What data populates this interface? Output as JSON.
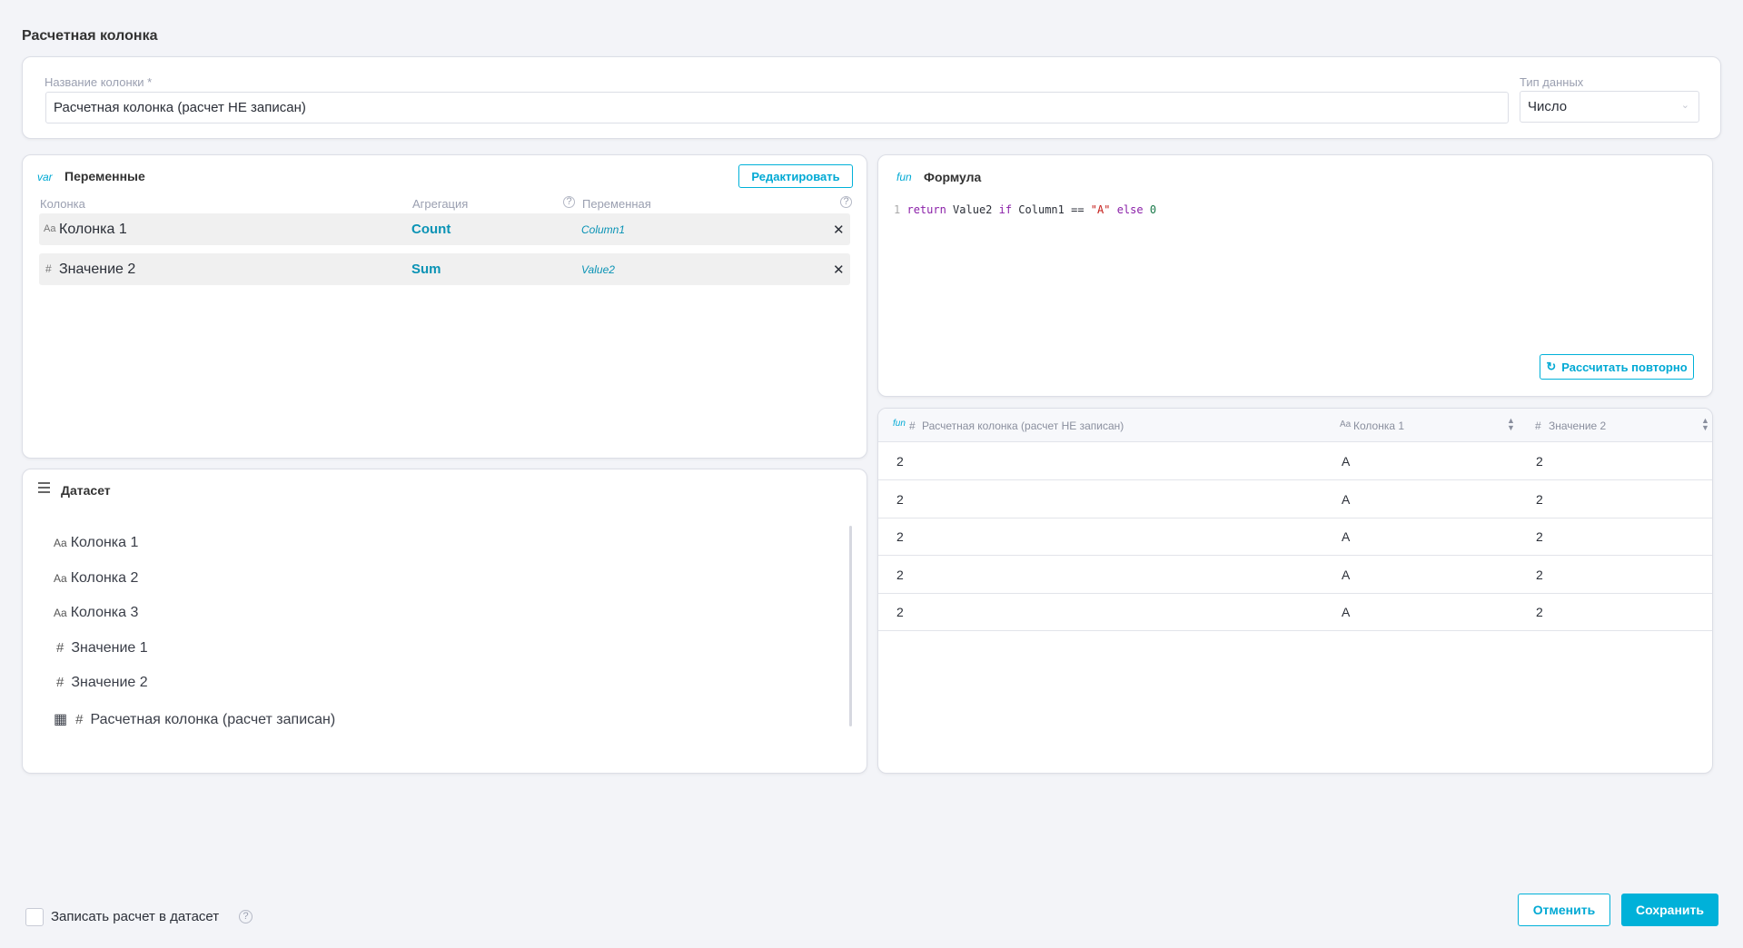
{
  "page_title": "Расчетная колонка",
  "form": {
    "name_label": "Название колонки *",
    "name_value": "Расчетная колонка (расчет НЕ записан)",
    "type_label": "Тип данных",
    "type_value": "Число"
  },
  "variables": {
    "icon_text": "var",
    "title": "Переменные",
    "edit_label": "Редактировать",
    "headers": {
      "column": "Колонка",
      "aggregation": "Агрегация",
      "variable": "Переменная"
    },
    "rows": [
      {
        "type_icon": "Aa",
        "column": "Колонка 1",
        "aggregation": "Count",
        "variable": "Column1"
      },
      {
        "type_icon": "#",
        "column": "Значение 2",
        "aggregation": "Sum",
        "variable": "Value2"
      }
    ]
  },
  "formula": {
    "icon_text": "fun",
    "title": "Формула",
    "line_number": "1",
    "code": {
      "kw1": "return",
      "t1": " Value2 ",
      "kw2": "if",
      "t2": " Column1 == ",
      "str": "\"A\"",
      "t3": " ",
      "kw3": "else",
      "t4": " ",
      "num": "0"
    },
    "recalc_label": "Рассчитать повторно"
  },
  "preview": {
    "headers": [
      {
        "icon": "fun",
        "type": "#",
        "label": "Расчетная колонка (расчет НЕ записан)"
      },
      {
        "type": "Aa",
        "label": "Колонка 1"
      },
      {
        "type": "#",
        "label": "Значение 2"
      }
    ],
    "rows": [
      [
        "2",
        "A",
        "2"
      ],
      [
        "2",
        "A",
        "2"
      ],
      [
        "2",
        "A",
        "2"
      ],
      [
        "2",
        "A",
        "2"
      ],
      [
        "2",
        "A",
        "2"
      ]
    ]
  },
  "dataset": {
    "title": "Датасет",
    "items": [
      {
        "type": "Aa",
        "label": "Колонка 1"
      },
      {
        "type": "Aa",
        "label": "Колонка 2"
      },
      {
        "type": "Aa",
        "label": "Колонка 3"
      },
      {
        "type": "#",
        "label": "Значение 1"
      },
      {
        "type": "#",
        "label": "Значение 2"
      },
      {
        "type": "#",
        "label": "Расчетная колонка (расчет записан)",
        "calculated": true
      }
    ]
  },
  "footer": {
    "write_label": "Записать расчет в датасет",
    "write_checked": false,
    "cancel_label": "Отменить",
    "save_label": "Сохранить"
  },
  "colors": {
    "accent": "#00b1d9",
    "keyword": "#8a1fa8",
    "string": "#c41a16",
    "number": "#1a7a4a"
  }
}
